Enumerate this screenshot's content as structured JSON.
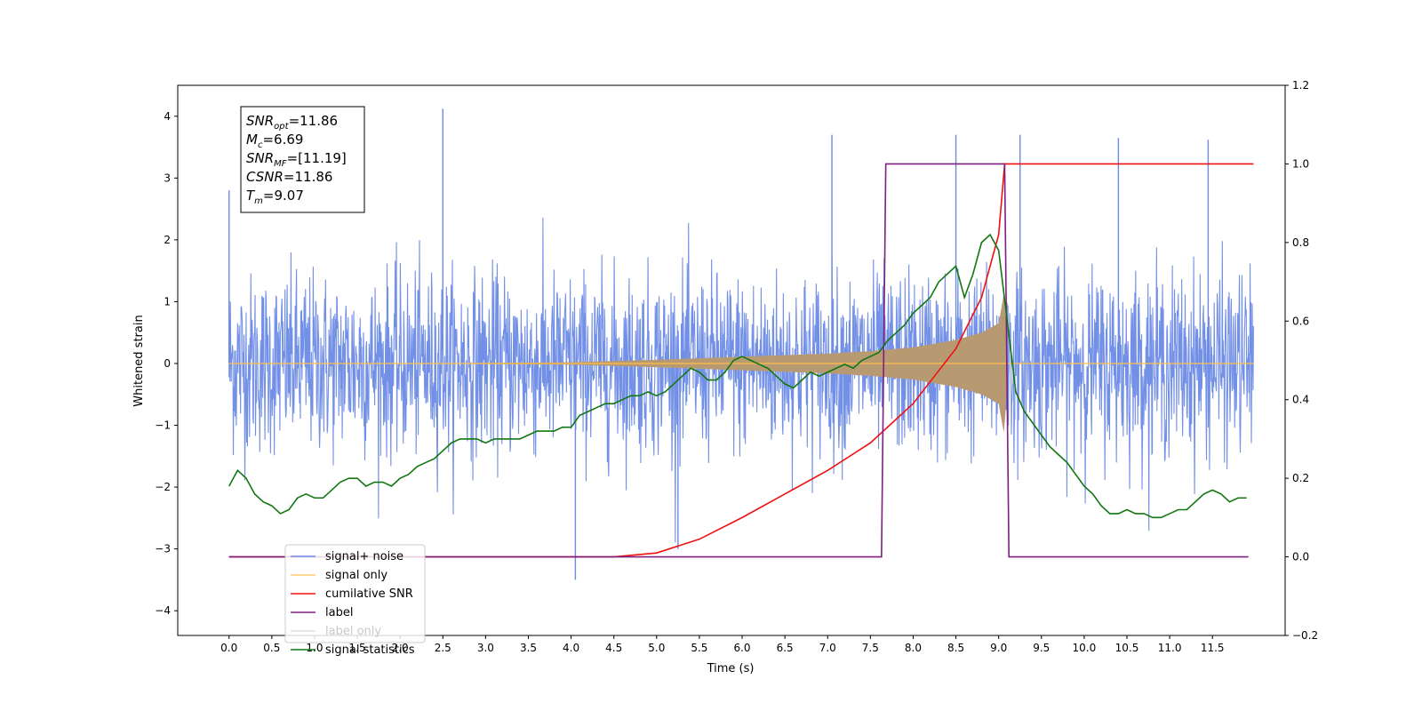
{
  "chart_data": {
    "type": "line",
    "xlabel": "Time (s)",
    "ylabel": "Whitened strain",
    "xlim": [
      -0.6,
      12.35
    ],
    "ylim": [
      -4.4,
      4.5
    ],
    "y2lim": [
      -0.2,
      1.2
    ],
    "x_ticks": [
      0.0,
      0.5,
      1.0,
      1.5,
      2.0,
      2.5,
      3.0,
      3.5,
      4.0,
      4.5,
      5.0,
      5.5,
      6.0,
      6.5,
      7.0,
      7.5,
      8.0,
      8.5,
      9.0,
      9.5,
      10.0,
      10.5,
      11.0,
      11.5
    ],
    "x_tick_labels": [
      "0.0",
      "0.5",
      "1.0",
      "1.5",
      "2.0",
      "2.5",
      "3.0",
      "3.5",
      "4.0",
      "4.5",
      "5.0",
      "5.5",
      "6.0",
      "6.5",
      "7.0",
      "7.5",
      "8.0",
      "8.5",
      "9.0",
      "9.5",
      "10.0",
      "10.5",
      "11.0",
      "11.5"
    ],
    "y_ticks": [
      -4,
      -3,
      -2,
      -1,
      0,
      1,
      2,
      3,
      4
    ],
    "y_tick_labels": [
      "−4",
      "−3",
      "−2",
      "−1",
      "0",
      "1",
      "2",
      "3",
      "4"
    ],
    "y2_ticks": [
      -0.2,
      0.0,
      0.2,
      0.4,
      0.6,
      0.8,
      1.0,
      1.2
    ],
    "y2_tick_labels": [
      "−0.2",
      "0.0",
      "0.2",
      "0.4",
      "0.6",
      "0.8",
      "1.0",
      "1.2"
    ],
    "grid": false,
    "legend_position": "lower-left",
    "annotation": {
      "lines": [
        {
          "base": "SNR",
          "sub": "opt",
          "rest": "=11.86"
        },
        {
          "base": "M",
          "sub": "c",
          "rest": "=6.69"
        },
        {
          "base": "SNR",
          "sub": "MF",
          "rest": "=[11.19]"
        },
        {
          "base": "CSNR",
          "sub": "",
          "rest": "=11.86"
        },
        {
          "base": "T",
          "sub": "m",
          "rest": "=9.07"
        }
      ]
    },
    "noise": {
      "x_start": 0.0,
      "x_end": 11.98,
      "approx_low": -1.6,
      "approx_high": 1.6,
      "peak_high": 4.12,
      "peak_low": -3.5
    },
    "series": [
      {
        "name": "signal+ noise",
        "color": "#6b8ae6",
        "axis": "left",
        "kind": "noise"
      },
      {
        "name": "signal only",
        "color": "#ffbf4d",
        "axis": "left",
        "kind": "chirp",
        "fill_color": "#b89a72",
        "chirp": {
          "x": [
            0.0,
            2.0,
            4.0,
            5.0,
            6.0,
            7.0,
            7.5,
            8.0,
            8.5,
            8.8,
            9.0,
            9.07,
            9.1,
            11.98
          ],
          "amplitude": [
            0.0,
            0.0,
            0.02,
            0.06,
            0.11,
            0.16,
            0.2,
            0.26,
            0.38,
            0.5,
            0.65,
            1.2,
            0.0,
            0.0
          ]
        }
      },
      {
        "name": "cumilative SNR",
        "color": "#ee1111",
        "axis": "right",
        "x": [
          0.0,
          4.5,
          5.0,
          5.5,
          6.0,
          6.5,
          7.0,
          7.5,
          8.0,
          8.5,
          8.8,
          9.0,
          9.07,
          9.1,
          11.98
        ],
        "y": [
          0.0,
          0.0,
          0.01,
          0.045,
          0.1,
          0.16,
          0.22,
          0.29,
          0.39,
          0.53,
          0.66,
          0.82,
          1.0,
          1.0,
          1.0
        ]
      },
      {
        "name": "label",
        "color": "#7f1f7f",
        "axis": "right",
        "x": [
          0.0,
          7.63,
          7.68,
          9.07,
          9.12,
          11.92
        ],
        "y": [
          0.0,
          0.0,
          1.0,
          1.0,
          0.0,
          0.0
        ]
      },
      {
        "name": "label only",
        "color": "#dddddd",
        "axis": "right",
        "x": [],
        "y": []
      },
      {
        "name": "signal statistics",
        "color": "#117711",
        "axis": "right",
        "x": [
          0.0,
          0.1,
          0.2,
          0.3,
          0.4,
          0.5,
          0.6,
          0.7,
          0.8,
          0.9,
          1.0,
          1.1,
          1.2,
          1.3,
          1.4,
          1.5,
          1.6,
          1.7,
          1.8,
          1.9,
          2.0,
          2.1,
          2.2,
          2.3,
          2.4,
          2.5,
          2.6,
          2.7,
          2.8,
          2.9,
          3.0,
          3.1,
          3.2,
          3.3,
          3.4,
          3.5,
          3.6,
          3.7,
          3.8,
          3.9,
          4.0,
          4.1,
          4.2,
          4.3,
          4.4,
          4.5,
          4.6,
          4.7,
          4.8,
          4.9,
          5.0,
          5.1,
          5.2,
          5.3,
          5.4,
          5.5,
          5.6,
          5.7,
          5.8,
          5.9,
          6.0,
          6.1,
          6.2,
          6.3,
          6.4,
          6.5,
          6.6,
          6.7,
          6.8,
          6.9,
          7.0,
          7.1,
          7.2,
          7.3,
          7.4,
          7.5,
          7.6,
          7.7,
          7.8,
          7.9,
          8.0,
          8.1,
          8.2,
          8.3,
          8.4,
          8.5,
          8.6,
          8.7,
          8.8,
          8.9,
          9.0,
          9.1,
          9.2,
          9.3,
          9.4,
          9.5,
          9.6,
          9.7,
          9.8,
          9.9,
          10.0,
          10.1,
          10.2,
          10.3,
          10.4,
          10.5,
          10.6,
          10.7,
          10.8,
          10.9,
          11.0,
          11.1,
          11.2,
          11.3,
          11.4,
          11.5,
          11.6,
          11.7,
          11.8,
          11.9
        ],
        "y": [
          0.18,
          0.22,
          0.2,
          0.16,
          0.14,
          0.13,
          0.11,
          0.12,
          0.15,
          0.16,
          0.15,
          0.15,
          0.17,
          0.19,
          0.2,
          0.2,
          0.18,
          0.19,
          0.19,
          0.18,
          0.2,
          0.21,
          0.23,
          0.24,
          0.25,
          0.27,
          0.29,
          0.3,
          0.3,
          0.3,
          0.29,
          0.3,
          0.3,
          0.3,
          0.3,
          0.31,
          0.32,
          0.32,
          0.32,
          0.33,
          0.33,
          0.36,
          0.37,
          0.38,
          0.39,
          0.39,
          0.4,
          0.41,
          0.41,
          0.42,
          0.41,
          0.42,
          0.44,
          0.46,
          0.48,
          0.47,
          0.45,
          0.45,
          0.47,
          0.5,
          0.51,
          0.5,
          0.49,
          0.48,
          0.46,
          0.44,
          0.43,
          0.45,
          0.47,
          0.46,
          0.47,
          0.48,
          0.49,
          0.48,
          0.5,
          0.51,
          0.52,
          0.55,
          0.57,
          0.59,
          0.62,
          0.64,
          0.66,
          0.7,
          0.72,
          0.74,
          0.66,
          0.72,
          0.8,
          0.82,
          0.78,
          0.6,
          0.42,
          0.37,
          0.34,
          0.31,
          0.28,
          0.26,
          0.24,
          0.21,
          0.18,
          0.16,
          0.13,
          0.11,
          0.11,
          0.12,
          0.11,
          0.11,
          0.1,
          0.1,
          0.11,
          0.12,
          0.12,
          0.14,
          0.16,
          0.17,
          0.16,
          0.14,
          0.15,
          0.15
        ]
      }
    ]
  }
}
